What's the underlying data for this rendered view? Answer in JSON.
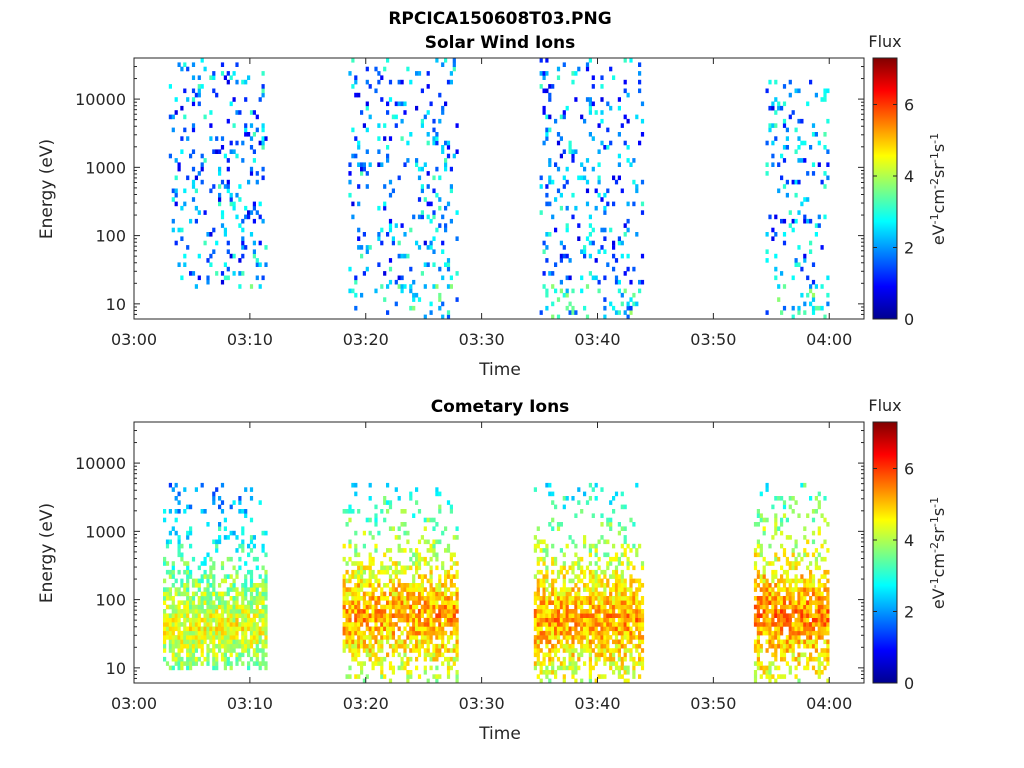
{
  "figure_title": "RPCICA150608T03.PNG",
  "chart_data": [
    {
      "type": "heatmap",
      "title": "Solar Wind Ions",
      "xlabel": "Time",
      "ylabel": "Energy (eV)",
      "x_ticks": [
        "03:00",
        "03:10",
        "03:20",
        "03:30",
        "03:40",
        "03:50",
        "04:00"
      ],
      "xlim_minutes": [
        0,
        63
      ],
      "y_scale": "log",
      "y_ticks": [
        10,
        100,
        1000,
        10000
      ],
      "y_tick_labels": [
        "10",
        "100",
        "1000",
        "10000"
      ],
      "ylim": [
        6,
        40000
      ],
      "colorbar": {
        "title": "Flux",
        "label": "eV-1cm-2sr-1s-1",
        "range": [
          0,
          7.3
        ],
        "ticks": [
          0,
          2,
          4,
          6
        ],
        "colormap": "jet"
      },
      "activity_windows": [
        {
          "start_min": 3.0,
          "end_min": 11.5,
          "energy_range_ev": [
            18,
            40000
          ],
          "typical_log_flux": 2.0
        },
        {
          "start_min": 18.5,
          "end_min": 28.0,
          "energy_range_ev": [
            6,
            40000
          ],
          "typical_log_flux": 2.0
        },
        {
          "start_min": 35.0,
          "end_min": 44.0,
          "energy_range_ev": [
            6,
            40000
          ],
          "typical_log_flux": 2.0
        },
        {
          "start_min": 54.5,
          "end_min": 60.0,
          "energy_range_ev": [
            6,
            20000
          ],
          "typical_log_flux": 2.0
        }
      ]
    },
    {
      "type": "heatmap",
      "title": "Cometary Ions",
      "xlabel": "Time",
      "ylabel": "Energy (eV)",
      "x_ticks": [
        "03:00",
        "03:10",
        "03:20",
        "03:30",
        "03:40",
        "03:50",
        "04:00"
      ],
      "xlim_minutes": [
        0,
        63
      ],
      "y_scale": "log",
      "y_ticks": [
        10,
        100,
        1000,
        10000
      ],
      "y_tick_labels": [
        "10",
        "100",
        "1000",
        "10000"
      ],
      "ylim": [
        6,
        40000
      ],
      "colorbar": {
        "title": "Flux",
        "label": "eV-1cm-2sr-1s-1",
        "range": [
          0,
          7.3
        ],
        "ticks": [
          0,
          2,
          4,
          6
        ],
        "colormap": "jet"
      },
      "activity_windows": [
        {
          "start_min": 2.5,
          "end_min": 11.5,
          "energy_range_ev": [
            10,
            5000
          ],
          "peak_energy_ev": 40,
          "peak_log_flux": 4.5
        },
        {
          "start_min": 18.0,
          "end_min": 28.0,
          "energy_range_ev": [
            6,
            5000
          ],
          "peak_energy_ev": 60,
          "peak_log_flux": 5.3
        },
        {
          "start_min": 34.5,
          "end_min": 44.0,
          "energy_range_ev": [
            6,
            5000
          ],
          "peak_energy_ev": 50,
          "peak_log_flux": 5.3
        },
        {
          "start_min": 53.5,
          "end_min": 60.0,
          "energy_range_ev": [
            6,
            5000
          ],
          "peak_energy_ev": 60,
          "peak_log_flux": 5.5
        }
      ]
    }
  ]
}
